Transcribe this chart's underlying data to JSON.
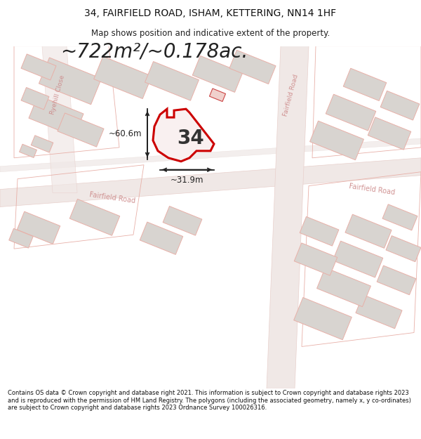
{
  "title": "34, FAIRFIELD ROAD, ISHAM, KETTERING, NN14 1HF",
  "subtitle": "Map shows position and indicative extent of the property.",
  "area_text": "~722m²/~0.178ac.",
  "width_label": "~31.9m",
  "height_label": "~60.6m",
  "property_number": "34",
  "road_label_diag": "Fairfield Road",
  "road_label_right": "Fairfield Road",
  "road_label_vert": "Fairfield Road",
  "road_label_left": "Ryehill Close",
  "footnote": "Contains OS data © Crown copyright and database right 2021. This information is subject to Crown copyright and database rights 2023 and is reproduced with the permission of HM Land Registry. The polygons (including the associated geometry, namely x, y co-ordinates) are subject to Crown copyright and database rights 2023 Ordnance Survey 100026316.",
  "bg_color": "#ffffff",
  "map_bg": "#f9f6f5",
  "road_fill": "#f0e8e6",
  "road_edge": "#e8d0cc",
  "building_fill": "#d8d4d0",
  "building_edge": "#e8b0a8",
  "building_lw": 0.7,
  "property_fill": "#f9f0f0",
  "property_edge": "#cc0000",
  "property_lw": 2.2,
  "dim_color": "#222222",
  "road_text_color": "#cc8888",
  "title_fontsize": 10,
  "subtitle_fontsize": 8.5,
  "area_fontsize": 20,
  "footnote_fontsize": 6.0
}
